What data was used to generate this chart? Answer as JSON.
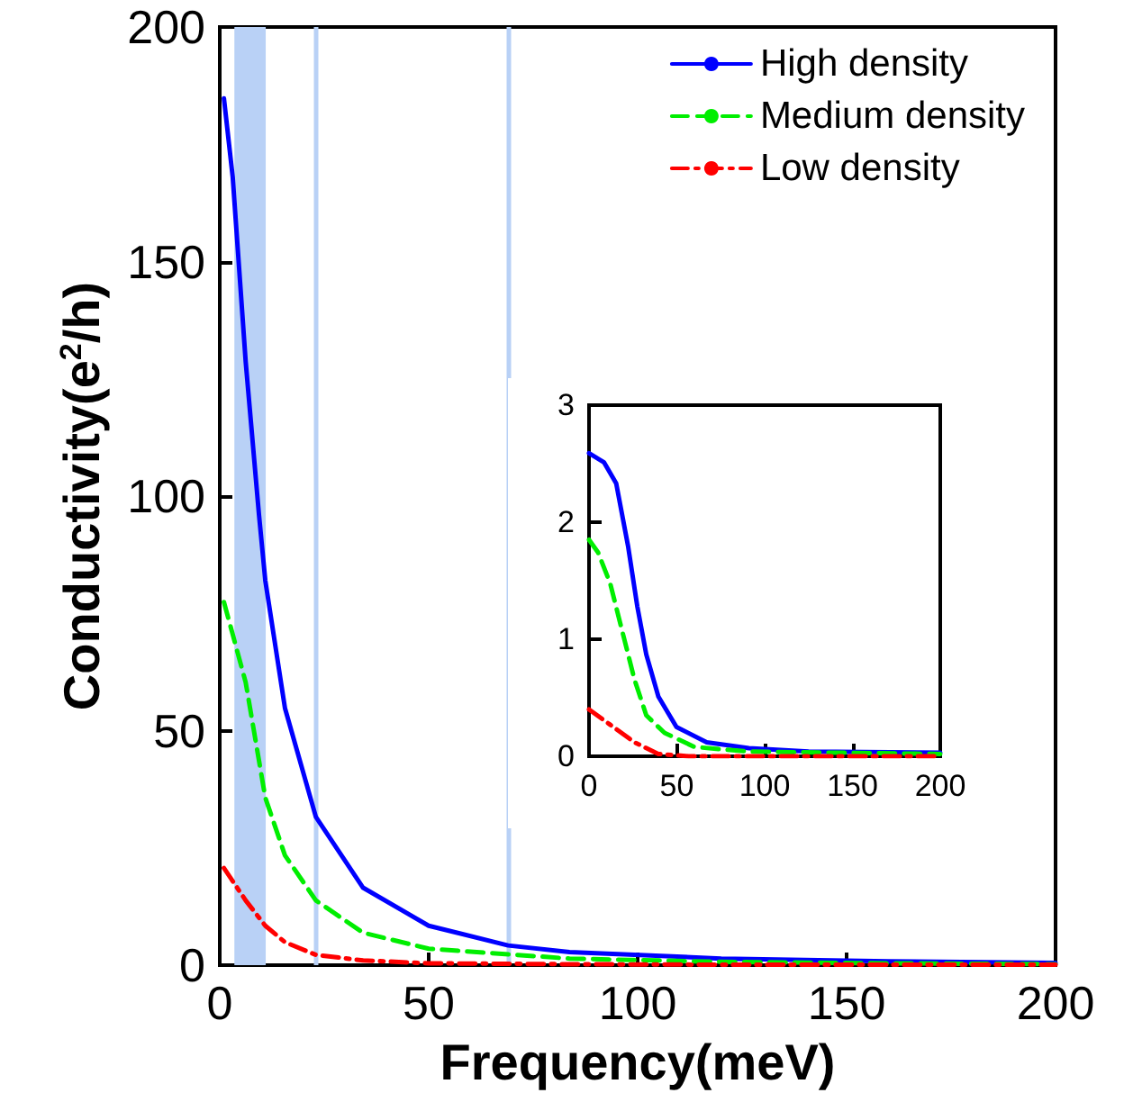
{
  "chart_data": [
    {
      "type": "line",
      "xlabel": "Frequency(meV)",
      "ylabel": "Conductivity(e$^{2}$/h)",
      "xlim": [
        0,
        200
      ],
      "ylim": [
        0,
        200
      ],
      "xticks": [
        0,
        50,
        100,
        150,
        200
      ],
      "yticks": [
        0,
        50,
        100,
        150,
        200
      ],
      "grid": false,
      "legend": "top right",
      "marker": "none",
      "series": [
        {
          "name": "High density",
          "color": "#0000ff",
          "line_style": "solid",
          "x": [
            1,
            3.1,
            6.2,
            9.4,
            10.9,
            15.6,
            23,
            34.3,
            50,
            69,
            83.7,
            120,
            160,
            200
          ],
          "values": [
            184.8,
            168,
            128.7,
            95.9,
            82,
            54.8,
            31.6,
            16.5,
            8.4,
            4.2,
            2.8,
            1.4,
            0.8,
            0.5
          ]
        },
        {
          "name": "Medium density",
          "color": "#00ee00",
          "line_style": "dashed",
          "x": [
            1,
            6.2,
            10.9,
            15.6,
            23,
            34.3,
            50,
            83.7,
            120,
            160,
            200
          ],
          "values": [
            77.4,
            60.3,
            35.7,
            23.4,
            13.8,
            6.9,
            3.5,
            1.4,
            0.7,
            0.4,
            0.2
          ]
        },
        {
          "name": "Low density",
          "color": "#ff0000",
          "line_style": "dashdot",
          "x": [
            1,
            6.2,
            10.9,
            15.6,
            23,
            34.3,
            50,
            83.7,
            120,
            200
          ],
          "values": [
            20.7,
            13.8,
            8.4,
            4.9,
            2.2,
            1,
            0.4,
            0.2,
            0.1,
            0.1
          ]
        }
      ],
      "ref_lines": [
        {
          "axis": "x",
          "value": 23,
          "color": "#b9d1f6"
        },
        {
          "axis": "x",
          "value": 69,
          "color": "#b9d1f6"
        }
      ],
      "bands": [
        {
          "axis": "x",
          "from": 3.5,
          "to": 11,
          "color": "#b9d1f6"
        }
      ]
    },
    {
      "type": "line",
      "xlim": [
        0,
        200
      ],
      "ylim": [
        0,
        3
      ],
      "xticks": [
        0,
        50,
        100,
        150,
        200
      ],
      "yticks": [
        0,
        1,
        2,
        3
      ],
      "grid": false,
      "legend": false,
      "marker": "none",
      "series": [
        {
          "color": "#0000ff",
          "line_style": "solid",
          "x": [
            0,
            8.6,
            15.5,
            22.3,
            27.5,
            32.6,
            39.5,
            49.8,
            67,
            91,
            125,
            200
          ],
          "values": [
            2.59,
            2.51,
            2.33,
            1.79,
            1.28,
            0.87,
            0.51,
            0.25,
            0.12,
            0.07,
            0.04,
            0.03
          ]
        },
        {
          "color": "#00ee00",
          "line_style": "dashed",
          "x": [
            0,
            5.2,
            12,
            18.9,
            25.8,
            32.6,
            43,
            60,
            91,
            200
          ],
          "values": [
            1.85,
            1.74,
            1.48,
            1.07,
            0.66,
            0.35,
            0.2,
            0.08,
            0.04,
            0.02
          ]
        },
        {
          "color": "#ff0000",
          "line_style": "dashdot",
          "x": [
            0,
            12,
            25.8,
            39.5,
            56.7,
            200
          ],
          "values": [
            0.4,
            0.27,
            0.12,
            0.02,
            0,
            0
          ]
        }
      ]
    }
  ]
}
